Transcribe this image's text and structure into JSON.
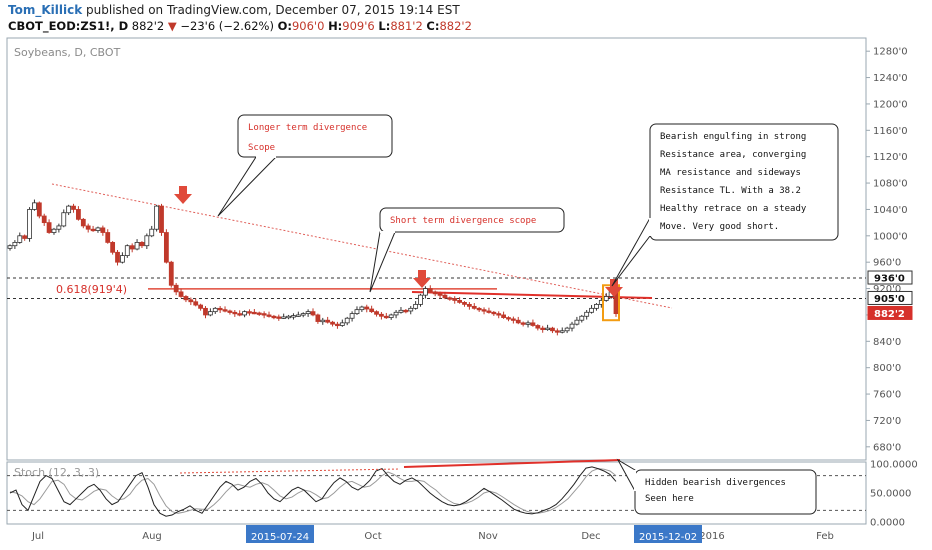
{
  "header": {
    "author": "Tom_Killick",
    "published_text": "published on TradingView.com, December 07, 2015 19:14 EST",
    "symbol": "CBOT_EOD:ZS1!, D",
    "last": "882'2",
    "change": "−23'6 (−2.62%)",
    "open_label": "O:",
    "open": "906'0",
    "high_label": "H:",
    "high": "909'6",
    "low_label": "L:",
    "low": "881'2",
    "close_label": "C:",
    "close": "882'2"
  },
  "chart_data": {
    "type": "candlestick",
    "title": "Soybeans, D, CBOT",
    "price_axis_ticks": [
      "1280'0",
      "1240'0",
      "1200'0",
      "1160'0",
      "1120'0",
      "1080'0",
      "1040'0",
      "1000'0",
      "960'0",
      "920'0",
      "880'0",
      "840'0",
      "800'0",
      "760'0",
      "720'0",
      "680'0"
    ],
    "price_tick_values": [
      1280,
      1240,
      1200,
      1160,
      1120,
      1080,
      1040,
      1000,
      960,
      920,
      880,
      840,
      800,
      760,
      720,
      680
    ],
    "price_range": [
      660,
      1300
    ],
    "price_labels": [
      {
        "text": "936'0",
        "value": 936,
        "style": "white"
      },
      {
        "text": "905'0",
        "value": 905,
        "style": "white"
      },
      {
        "text": "882'2",
        "value": 882.25,
        "style": "red"
      }
    ],
    "dashed_levels": [
      936,
      905
    ],
    "fib_label": "0.618(919'4)",
    "fib_value": 919.5,
    "time_axis_labels": [
      "Jul",
      "Aug",
      "Oct",
      "Nov",
      "Dec",
      "2016",
      "Feb"
    ],
    "time_highlight_labels": [
      "2015-07-24",
      "2015-12-02"
    ],
    "closes": [
      985,
      990,
      1000,
      996,
      1040,
      1050,
      1030,
      1020,
      1005,
      1010,
      1015,
      1035,
      1045,
      1040,
      1025,
      1015,
      1010,
      1008,
      1012,
      1005,
      990,
      975,
      960,
      970,
      985,
      980,
      990,
      985,
      1000,
      1010,
      1045,
      1005,
      960,
      925,
      915,
      908,
      903,
      900,
      895,
      890,
      880,
      885,
      890,
      888,
      886,
      884,
      882,
      880,
      885,
      884,
      883,
      882,
      880,
      878,
      877,
      876,
      877,
      878,
      879,
      880,
      882,
      885,
      880,
      870,
      872,
      869,
      866,
      864,
      868,
      875,
      882,
      888,
      892,
      889,
      885,
      881,
      878,
      876,
      880,
      884,
      887,
      886,
      890,
      896,
      910,
      920,
      915,
      912,
      910,
      906,
      905,
      902,
      899,
      896,
      893,
      890,
      888,
      886,
      884,
      882,
      880,
      876,
      874,
      872,
      868,
      866,
      868,
      864,
      860,
      858,
      860,
      856,
      854,
      856,
      860,
      866,
      872,
      878,
      884,
      890,
      896,
      902,
      908,
      915,
      882
    ],
    "stochastic": {
      "label": "Stoch (12, 3, 3)",
      "axis_ticks": [
        "100.0000",
        "50.0000",
        "0.0000"
      ],
      "axis_tick_values": [
        100,
        50,
        0
      ],
      "levels": [
        80,
        20
      ],
      "k": [
        50,
        55,
        30,
        20,
        45,
        70,
        80,
        75,
        55,
        35,
        30,
        40,
        50,
        60,
        65,
        55,
        40,
        30,
        35,
        50,
        65,
        80,
        85,
        60,
        30,
        15,
        10,
        12,
        18,
        22,
        28,
        20,
        15,
        30,
        45,
        60,
        70,
        65,
        55,
        60,
        70,
        75,
        65,
        50,
        40,
        35,
        45,
        55,
        60,
        55,
        45,
        35,
        40,
        55,
        68,
        76,
        70,
        60,
        55,
        62,
        72,
        88,
        92,
        80,
        70,
        65,
        72,
        76,
        70,
        60,
        50,
        42,
        35,
        30,
        28,
        30,
        35,
        42,
        50,
        58,
        52,
        45,
        38,
        30,
        22,
        18,
        15,
        14,
        16,
        20,
        24,
        30,
        40,
        52,
        65,
        80,
        93,
        95,
        92,
        88,
        82,
        70
      ],
      "d": [
        52,
        50,
        45,
        35,
        30,
        40,
        55,
        70,
        72,
        65,
        48,
        40,
        38,
        45,
        53,
        57,
        55,
        45,
        38,
        40,
        48,
        62,
        72,
        75,
        65,
        45,
        28,
        18,
        15,
        17,
        20,
        23,
        22,
        22,
        30,
        40,
        52,
        62,
        65,
        62,
        60,
        65,
        68,
        64,
        55,
        45,
        40,
        43,
        50,
        55,
        53,
        47,
        40,
        42,
        50,
        60,
        68,
        70,
        65,
        60,
        62,
        70,
        80,
        86,
        82,
        75,
        70,
        70,
        72,
        70,
        62,
        55,
        45,
        38,
        32,
        30,
        32,
        36,
        42,
        50,
        53,
        50,
        44,
        37,
        30,
        24,
        19,
        16,
        15,
        17,
        20,
        25,
        32,
        40,
        52,
        64,
        78,
        88,
        92,
        91,
        88,
        80
      ]
    },
    "annotations": [
      {
        "id": "longer",
        "text": [
          "Longer term divergence",
          "Scope"
        ]
      },
      {
        "id": "shorter",
        "text": [
          "Short term divergence scope"
        ]
      },
      {
        "id": "bearish",
        "text": [
          "Bearish engulfing in strong",
          "Resistance area, converging",
          "MA resistance and sideways",
          "Resistance TL. With a 38.2",
          "Healthy retrace on a steady",
          "Move. Very good short."
        ]
      },
      {
        "id": "hidden",
        "text": [
          "Hidden bearish divergences",
          "Seen here"
        ]
      }
    ]
  }
}
